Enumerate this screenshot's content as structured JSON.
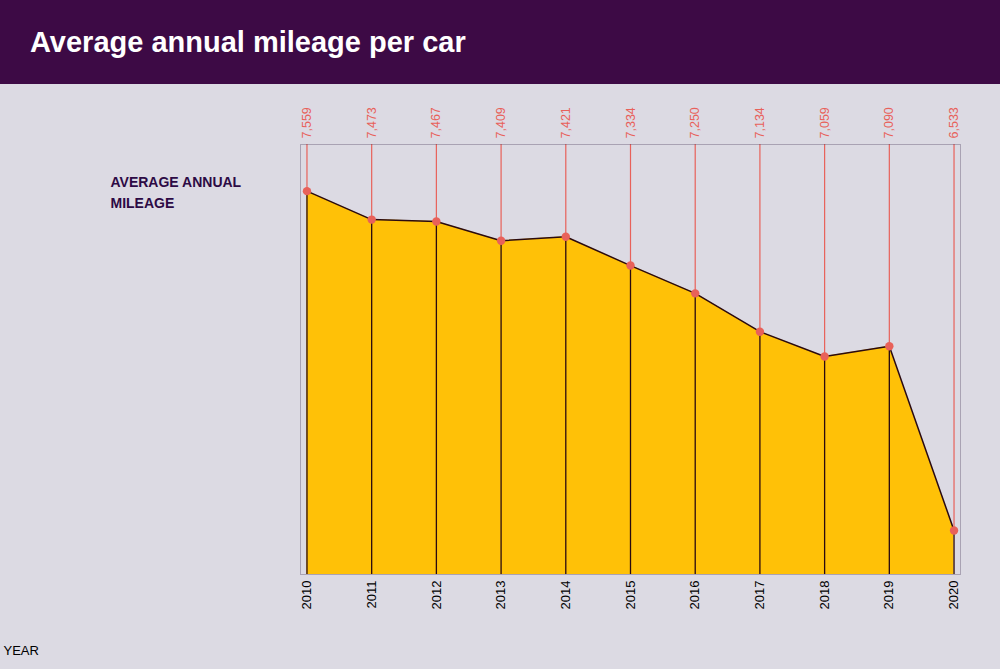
{
  "chart_data": {
    "type": "area",
    "title": "Average annual mileage per car",
    "x_label": "YEAR",
    "y_label": "AVERAGE ANNUAL\nMILEAGE",
    "x": [
      2010,
      2011,
      2012,
      2013,
      2014,
      2015,
      2016,
      2017,
      2018,
      2019,
      2020
    ],
    "values": [
      7559,
      7473,
      7467,
      7409,
      7421,
      7334,
      7250,
      7134,
      7059,
      7090,
      6533
    ],
    "value_labels": [
      "7,559",
      "7,473",
      "7,467",
      "7,409",
      "7,421",
      "7,334",
      "7,250",
      "7,134",
      "7,059",
      "7,090",
      "6,533"
    ],
    "xlim": [
      2009.9,
      2020.1
    ],
    "xticks": [
      2010,
      2011,
      2012,
      2013,
      2014,
      2015,
      2016,
      2017,
      2018,
      2019,
      2020
    ],
    "ylim": [
      6400,
      7700
    ],
    "color": "#FFC107",
    "marker": "circle",
    "data_labels": true,
    "tick_labels": "x",
    "grid": false
  }
}
